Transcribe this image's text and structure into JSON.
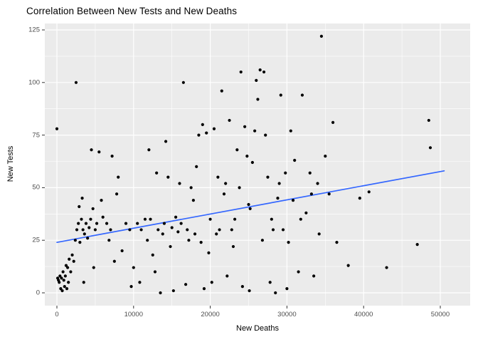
{
  "chart_data": {
    "type": "scatter",
    "title": "Correlation Between New Tests and New Deaths",
    "xlabel": "New Deaths",
    "ylabel": "New Tests",
    "xlim": [
      -1600,
      53900
    ],
    "ylim": [
      -6,
      128
    ],
    "x_ticks": [
      0,
      10000,
      20000,
      30000,
      40000,
      50000
    ],
    "x_tick_labels": [
      "0",
      "10000",
      "20000",
      "30000",
      "40000",
      "50000"
    ],
    "y_ticks": [
      0,
      25,
      50,
      75,
      100,
      125
    ],
    "y_tick_labels": [
      "0",
      "25",
      "50",
      "75",
      "100",
      "125"
    ],
    "x_minor_breaks": [
      5000,
      15000,
      25000,
      35000,
      45000
    ],
    "y_minor_breaks": [
      12.5,
      37.5,
      62.5,
      87.5,
      112.5
    ],
    "grid": "on",
    "legend": "none",
    "trend_line": {
      "x1": 0,
      "y1": 24,
      "x2": 50500,
      "y2": 58
    },
    "points": [
      [
        0,
        78
      ],
      [
        100,
        7
      ],
      [
        200,
        6
      ],
      [
        300,
        5
      ],
      [
        400,
        8
      ],
      [
        500,
        2
      ],
      [
        600,
        7
      ],
      [
        700,
        1
      ],
      [
        800,
        10
      ],
      [
        900,
        6
      ],
      [
        1000,
        3
      ],
      [
        1100,
        8
      ],
      [
        1200,
        13
      ],
      [
        1300,
        2
      ],
      [
        1400,
        12
      ],
      [
        1500,
        5
      ],
      [
        1600,
        16
      ],
      [
        1800,
        10
      ],
      [
        2000,
        18
      ],
      [
        2200,
        15
      ],
      [
        2400,
        25
      ],
      [
        2500,
        100
      ],
      [
        2600,
        30
      ],
      [
        2800,
        33
      ],
      [
        2900,
        41
      ],
      [
        3000,
        24
      ],
      [
        3200,
        35
      ],
      [
        3300,
        45
      ],
      [
        3400,
        30
      ],
      [
        3500,
        5
      ],
      [
        3600,
        28
      ],
      [
        3800,
        33
      ],
      [
        4000,
        26
      ],
      [
        4200,
        31
      ],
      [
        4400,
        35
      ],
      [
        4500,
        68
      ],
      [
        4700,
        40
      ],
      [
        4800,
        12
      ],
      [
        5000,
        30
      ],
      [
        5200,
        33
      ],
      [
        5500,
        67
      ],
      [
        5800,
        44
      ],
      [
        6000,
        36
      ],
      [
        6500,
        33
      ],
      [
        6800,
        25
      ],
      [
        7000,
        30
      ],
      [
        7200,
        65
      ],
      [
        7500,
        15
      ],
      [
        7800,
        47
      ],
      [
        8000,
        55
      ],
      [
        8500,
        20
      ],
      [
        9000,
        33
      ],
      [
        9500,
        30
      ],
      [
        9700,
        3
      ],
      [
        10000,
        12
      ],
      [
        10500,
        33
      ],
      [
        10800,
        5
      ],
      [
        11000,
        30
      ],
      [
        11500,
        35
      ],
      [
        11800,
        25
      ],
      [
        12000,
        68
      ],
      [
        12200,
        35
      ],
      [
        12500,
        18
      ],
      [
        12800,
        10
      ],
      [
        13000,
        57
      ],
      [
        13200,
        30
      ],
      [
        13500,
        0
      ],
      [
        13800,
        28
      ],
      [
        14000,
        33
      ],
      [
        14200,
        72
      ],
      [
        14500,
        55
      ],
      [
        14800,
        22
      ],
      [
        15000,
        31
      ],
      [
        15200,
        1
      ],
      [
        15500,
        36
      ],
      [
        15800,
        29
      ],
      [
        16000,
        52
      ],
      [
        16200,
        33
      ],
      [
        16500,
        100
      ],
      [
        16800,
        4
      ],
      [
        17000,
        30
      ],
      [
        17200,
        25
      ],
      [
        17500,
        50
      ],
      [
        17800,
        44
      ],
      [
        18000,
        28
      ],
      [
        18200,
        60
      ],
      [
        18500,
        75
      ],
      [
        18800,
        24
      ],
      [
        19000,
        80
      ],
      [
        19200,
        2
      ],
      [
        19500,
        76
      ],
      [
        19800,
        19
      ],
      [
        20000,
        35
      ],
      [
        20200,
        5
      ],
      [
        20500,
        78
      ],
      [
        20800,
        28
      ],
      [
        21000,
        55
      ],
      [
        21200,
        30
      ],
      [
        21500,
        96
      ],
      [
        21800,
        47
      ],
      [
        22000,
        52
      ],
      [
        22200,
        8
      ],
      [
        22500,
        82
      ],
      [
        22800,
        30
      ],
      [
        23000,
        22
      ],
      [
        23200,
        35
      ],
      [
        23500,
        68
      ],
      [
        23800,
        50
      ],
      [
        24000,
        105
      ],
      [
        24200,
        3
      ],
      [
        24500,
        79
      ],
      [
        24800,
        65
      ],
      [
        25000,
        42
      ],
      [
        25100,
        1
      ],
      [
        25200,
        40
      ],
      [
        25500,
        62
      ],
      [
        25800,
        77
      ],
      [
        26000,
        101
      ],
      [
        26200,
        92
      ],
      [
        26500,
        106
      ],
      [
        26800,
        25
      ],
      [
        27000,
        105
      ],
      [
        27200,
        75
      ],
      [
        27500,
        55
      ],
      [
        27800,
        5
      ],
      [
        28000,
        35
      ],
      [
        28200,
        30
      ],
      [
        28500,
        0
      ],
      [
        28800,
        45
      ],
      [
        29000,
        52
      ],
      [
        29200,
        94
      ],
      [
        29500,
        30
      ],
      [
        29800,
        57
      ],
      [
        30000,
        2
      ],
      [
        30200,
        24
      ],
      [
        30500,
        77
      ],
      [
        30800,
        44
      ],
      [
        31000,
        63
      ],
      [
        31500,
        10
      ],
      [
        31800,
        35
      ],
      [
        32000,
        94
      ],
      [
        32500,
        38
      ],
      [
        33000,
        57
      ],
      [
        33200,
        47
      ],
      [
        33500,
        8
      ],
      [
        34000,
        52
      ],
      [
        34200,
        28
      ],
      [
        34500,
        122
      ],
      [
        35000,
        65
      ],
      [
        35500,
        47
      ],
      [
        36000,
        81
      ],
      [
        36500,
        24
      ],
      [
        38000,
        13
      ],
      [
        39500,
        45
      ],
      [
        40700,
        48
      ],
      [
        43000,
        12
      ],
      [
        47000,
        23
      ],
      [
        48500,
        82
      ],
      [
        48700,
        69
      ]
    ],
    "colors": {
      "panel_background": "#EBEBEB",
      "grid_major": "#FFFFFF",
      "grid_minor": "#FFFFFF",
      "point": "#000000",
      "trend": "#3366FF",
      "tick_text": "#4D4D4D",
      "tick_mark": "#333333",
      "title_text": "#000000"
    }
  }
}
